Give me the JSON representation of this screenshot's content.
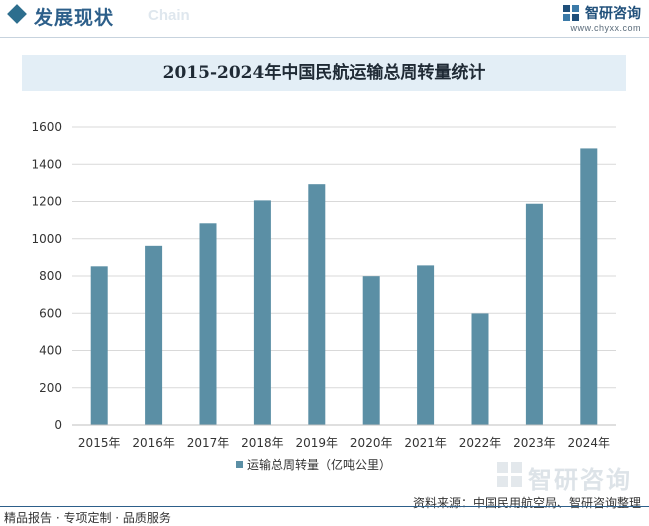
{
  "header": {
    "title": "发展现状",
    "subtitle": "Chain",
    "logo_name": "智研咨询",
    "logo_url": "www.chyxx.com"
  },
  "colors": {
    "bar": "#5b8fa5",
    "title_band": "#e3eef6",
    "accent": "#2d6e8e"
  },
  "chart_data": {
    "type": "bar",
    "title": "2015-2024年中国民航运输总周转量统计",
    "categories": [
      "2015年",
      "2016年",
      "2017年",
      "2018年",
      "2019年",
      "2020年",
      "2021年",
      "2022年",
      "2023年",
      "2024年"
    ],
    "series": [
      {
        "name": "运输总周转量（亿吨公里）",
        "values": [
          852,
          962,
          1083,
          1206,
          1293,
          799,
          857,
          599,
          1188,
          1485
        ]
      }
    ],
    "ylim": [
      0,
      1600
    ],
    "yticks": [
      0,
      200,
      400,
      600,
      800,
      1000,
      1200,
      1400,
      1600
    ],
    "grid": true,
    "legend_position": "bottom"
  },
  "footer": {
    "left": "精品报告 · 专项定制 · 品质服务",
    "source": "资料来源：中国民用航空局、智研咨询整理",
    "watermark": "智研咨询"
  }
}
